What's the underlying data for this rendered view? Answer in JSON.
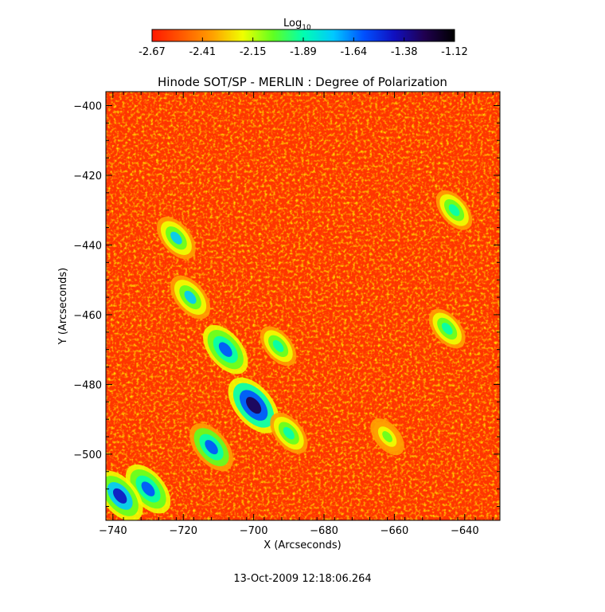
{
  "chart_data": {
    "type": "heatmap",
    "title": "Hinode SOT/SP - MERLIN : Degree of Polarization",
    "xlabel": "X (Arcseconds)",
    "ylabel": "Y (Arcseconds)",
    "xlim": [
      -742,
      -630
    ],
    "ylim": [
      -519,
      -396
    ],
    "x_ticks": [
      -740,
      -720,
      -700,
      -680,
      -660,
      -640
    ],
    "y_ticks": [
      -400,
      -420,
      -440,
      -460,
      -480,
      -500
    ],
    "colorbar": {
      "title": "Log",
      "title_subscript": "10",
      "range": [
        -2.67,
        -1.12
      ],
      "ticks": [
        "-2.67",
        "-2.41",
        "-2.15",
        "-1.89",
        "-1.64",
        "-1.38",
        "-1.12"
      ],
      "colormap": [
        "#ff1800",
        "#ff5a00",
        "#ffa000",
        "#f0ff00",
        "#60ff20",
        "#00ffb0",
        "#00c8ff",
        "#0050ff",
        "#1010c0",
        "#200050",
        "#000000"
      ]
    },
    "features": [
      {
        "x": -700,
        "y": -486,
        "value": -1.3
      },
      {
        "x": -708,
        "y": -470,
        "value": -1.55
      },
      {
        "x": -718,
        "y": -455,
        "value": -1.75
      },
      {
        "x": -712,
        "y": -498,
        "value": -1.6
      },
      {
        "x": -730,
        "y": -510,
        "value": -1.55
      },
      {
        "x": -738,
        "y": -512,
        "value": -1.5
      },
      {
        "x": -722,
        "y": -438,
        "value": -1.8
      },
      {
        "x": -693,
        "y": -469,
        "value": -1.9
      },
      {
        "x": -690,
        "y": -494,
        "value": -1.85
      },
      {
        "x": -645,
        "y": -464,
        "value": -1.9
      },
      {
        "x": -643,
        "y": -430,
        "value": -1.9
      },
      {
        "x": -662,
        "y": -495,
        "value": -2.0
      }
    ]
  },
  "timestamp": "13-Oct-2009 12:18:06.264"
}
